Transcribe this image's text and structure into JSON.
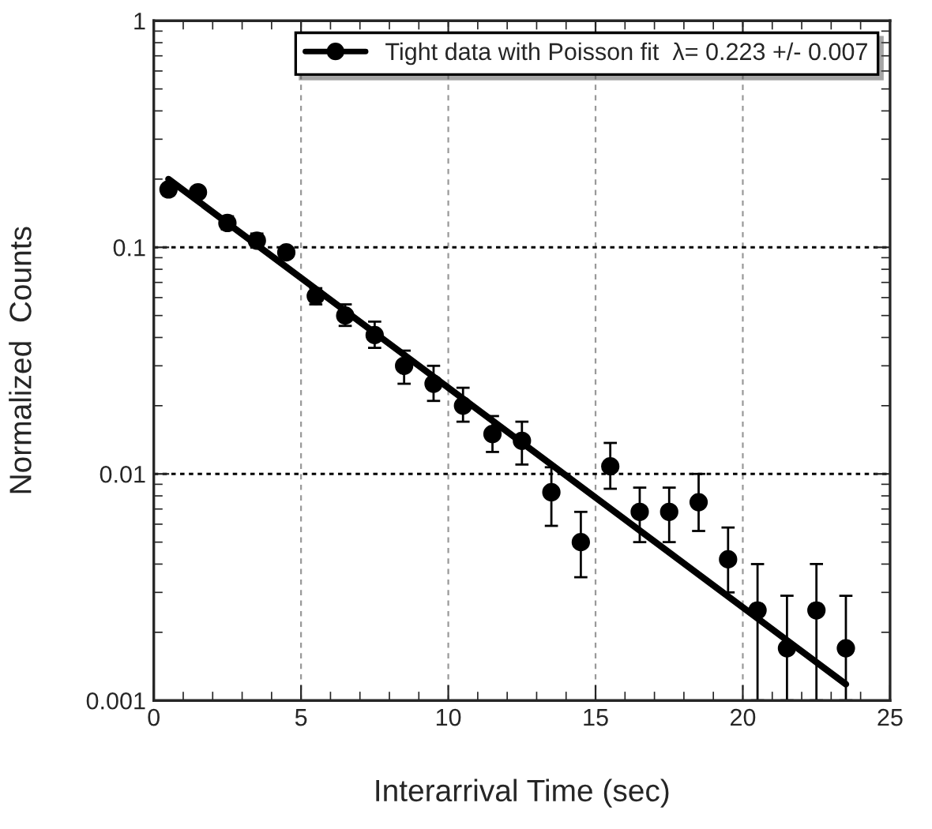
{
  "chart_data": {
    "type": "scatter",
    "xlabel": "Interarrival Time (sec)",
    "ylabel": "Normalized  Counts",
    "series": [
      {
        "name": "Tight data with Poisson fit  λ= 0.223 +/- 0.007",
        "color": "#000000",
        "marker": "circle",
        "x": [
          0.5,
          1.5,
          2.5,
          3.5,
          4.5,
          5.5,
          6.5,
          7.5,
          8.5,
          9.5,
          10.5,
          11.5,
          12.5,
          13.5,
          14.5,
          15.5,
          16.5,
          17.5,
          18.5,
          19.5,
          20.5,
          21.5,
          22.5,
          23.5
        ],
        "values": [
          0.18,
          0.175,
          0.128,
          0.107,
          0.095,
          0.061,
          0.05,
          0.041,
          0.03,
          0.025,
          0.02,
          0.015,
          0.014,
          0.0083,
          0.005,
          0.0108,
          0.0068,
          0.0068,
          0.0075,
          0.0042,
          0.0025,
          0.0017,
          0.0025,
          0.0017
        ],
        "errors": [
          [
            0.17,
            0.19
          ],
          [
            0.167,
            0.183
          ],
          [
            0.12,
            0.137
          ],
          [
            0.1,
            0.115
          ],
          [
            0.09,
            0.1
          ],
          [
            0.056,
            0.066
          ],
          [
            0.045,
            0.056
          ],
          [
            0.036,
            0.047
          ],
          [
            0.025,
            0.035
          ],
          [
            0.021,
            0.03
          ],
          [
            0.017,
            0.024
          ],
          [
            0.0125,
            0.018
          ],
          [
            0.011,
            0.017
          ],
          [
            0.0059,
            0.0107
          ],
          [
            0.0035,
            0.0068
          ],
          [
            0.0086,
            0.0137
          ],
          [
            0.005,
            0.0087
          ],
          [
            0.005,
            0.0087
          ],
          [
            0.0056,
            0.01
          ],
          [
            0.003,
            0.0058
          ],
          [
            0.001,
            0.004
          ],
          [
            0.001,
            0.0029
          ],
          [
            0.001,
            0.004
          ],
          [
            0.001,
            0.0029
          ]
        ]
      },
      {
        "type": "line",
        "color": "#000000",
        "x": [
          0.5,
          23.5
        ],
        "values": [
          0.2,
          0.00118
        ]
      }
    ],
    "xlim": [
      0,
      25
    ],
    "xticks": [
      0,
      5,
      10,
      15,
      20,
      25
    ],
    "ylim": [
      0.001,
      1
    ],
    "yticks": [
      0.001,
      0.01,
      0.1,
      1
    ],
    "log": "y",
    "grid": true,
    "legend": "top right"
  }
}
